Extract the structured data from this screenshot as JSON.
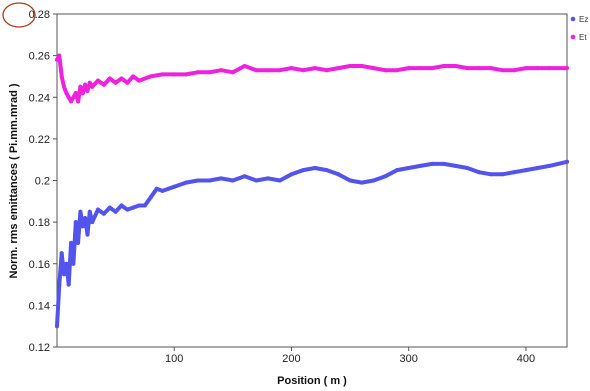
{
  "chart_data": {
    "type": "line",
    "xlabel": "Position ( m )",
    "ylabel": "Norm. rms emittances ( Pi.mm.mrad )",
    "xlim": [
      0,
      435
    ],
    "ylim": [
      0.12,
      0.28
    ],
    "x_ticks": [
      "100",
      "200",
      "300",
      "400"
    ],
    "y_ticks": [
      "0.12",
      "0.14",
      "0.16",
      "0.18",
      "0.2",
      "0.22",
      "0.24",
      "0.26",
      "0.28"
    ],
    "grid": false,
    "legend": "top-right",
    "series": [
      {
        "name": "Ez",
        "color": "#5353ee",
        "x": [
          0,
          2,
          4,
          6,
          8,
          10,
          12,
          14,
          16,
          18,
          20,
          22,
          24,
          26,
          28,
          30,
          35,
          40,
          45,
          50,
          55,
          60,
          65,
          70,
          75,
          80,
          85,
          90,
          95,
          100,
          110,
          120,
          130,
          140,
          150,
          160,
          170,
          180,
          190,
          200,
          210,
          220,
          230,
          240,
          250,
          260,
          270,
          280,
          290,
          300,
          310,
          320,
          330,
          340,
          350,
          360,
          370,
          380,
          390,
          400,
          410,
          420,
          435
        ],
        "y": [
          0.13,
          0.15,
          0.165,
          0.155,
          0.16,
          0.15,
          0.17,
          0.16,
          0.18,
          0.17,
          0.185,
          0.178,
          0.182,
          0.174,
          0.185,
          0.18,
          0.186,
          0.184,
          0.187,
          0.185,
          0.188,
          0.186,
          0.187,
          0.188,
          0.188,
          0.192,
          0.196,
          0.195,
          0.196,
          0.197,
          0.199,
          0.2,
          0.2,
          0.201,
          0.2,
          0.202,
          0.2,
          0.201,
          0.2,
          0.203,
          0.205,
          0.206,
          0.205,
          0.203,
          0.2,
          0.199,
          0.2,
          0.202,
          0.205,
          0.206,
          0.207,
          0.208,
          0.208,
          0.207,
          0.206,
          0.204,
          0.203,
          0.203,
          0.204,
          0.205,
          0.206,
          0.207,
          0.209
        ]
      },
      {
        "name": "Et",
        "color": "#ee22dd",
        "x": [
          0,
          2,
          4,
          6,
          8,
          10,
          12,
          14,
          16,
          18,
          20,
          22,
          24,
          26,
          28,
          30,
          35,
          40,
          45,
          50,
          55,
          60,
          65,
          70,
          80,
          90,
          100,
          110,
          120,
          130,
          140,
          150,
          160,
          170,
          180,
          190,
          200,
          210,
          220,
          230,
          240,
          250,
          260,
          270,
          280,
          290,
          300,
          310,
          320,
          330,
          340,
          350,
          360,
          370,
          380,
          390,
          400,
          410,
          420,
          435
        ],
        "y": [
          0.258,
          0.26,
          0.25,
          0.245,
          0.242,
          0.24,
          0.238,
          0.24,
          0.242,
          0.238,
          0.245,
          0.242,
          0.246,
          0.243,
          0.247,
          0.245,
          0.248,
          0.246,
          0.249,
          0.247,
          0.249,
          0.247,
          0.25,
          0.248,
          0.25,
          0.251,
          0.251,
          0.251,
          0.252,
          0.252,
          0.253,
          0.252,
          0.255,
          0.253,
          0.253,
          0.253,
          0.254,
          0.253,
          0.254,
          0.253,
          0.254,
          0.255,
          0.255,
          0.254,
          0.253,
          0.253,
          0.254,
          0.254,
          0.254,
          0.255,
          0.255,
          0.254,
          0.254,
          0.254,
          0.253,
          0.253,
          0.254,
          0.254,
          0.254,
          0.254
        ]
      }
    ]
  }
}
